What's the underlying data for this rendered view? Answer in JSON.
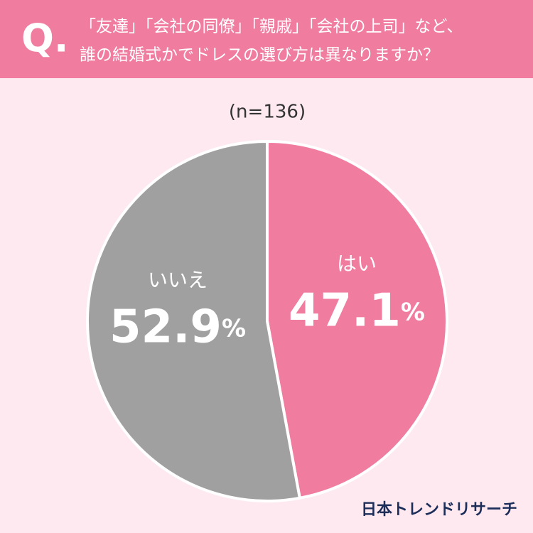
{
  "chart_data": {
    "type": "pie",
    "title_prefix": "Q.",
    "title": [
      "「友達」「会社の同僚」「親戚」「会社の上司」など、",
      "誰の結婚式かでドレスの選び方は異なりますか？"
    ],
    "subtitle": "(n=136)",
    "categories": [
      "はい",
      "いいえ"
    ],
    "values": [
      47.1,
      52.9
    ],
    "value_labels": [
      "47.1%",
      "52.9%"
    ],
    "colors": [
      "#f07ca0",
      "#a0a0a0"
    ],
    "source": "日本トレンドリサーチ"
  }
}
